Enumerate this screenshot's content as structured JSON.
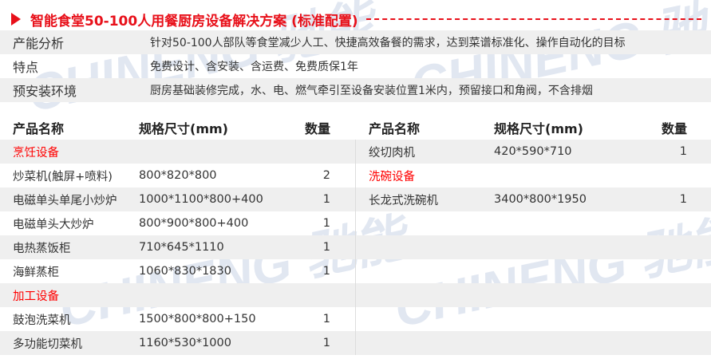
{
  "title": "智能食堂50-100人用餐厨房设备解决方案 (标准配置)",
  "info": [
    {
      "label": "产能分析",
      "value": "针对50-100人部队等食堂减少人工、快捷高效备餐的需求，达到菜谱标准化、操作自动化的目标"
    },
    {
      "label": "特点",
      "value": "免费设计、含安装、含运费、免费质保1年"
    },
    {
      "label": "预安装环境",
      "value": "厨房基础装修完成，水、电、燃气牵引至设备安装位置1米内，预留接口和角阀，不含排烟"
    }
  ],
  "headers": {
    "name": "产品名称",
    "size": "规格尺寸(mm)",
    "qty": "数量"
  },
  "left_rows": [
    {
      "category": "烹饪设备"
    },
    {
      "name": "炒菜机(触屏+喷料)",
      "size": "800*820*800",
      "qty": "2"
    },
    {
      "name": "电磁单头单尾小炒炉",
      "size": "1000*1100*800+400",
      "qty": "1"
    },
    {
      "name": "电磁单头大炒炉",
      "size": "800*900*800+400",
      "qty": "1"
    },
    {
      "name": "电热蒸饭柜",
      "size": "710*645*1110",
      "qty": "1"
    },
    {
      "name": "海鲜蒸柜",
      "size": "1060*830*1830",
      "qty": "1"
    },
    {
      "category": "加工设备"
    },
    {
      "name": "鼓泡洗菜机",
      "size": "1500*800*800+150",
      "qty": "1"
    },
    {
      "name": "多功能切菜机",
      "size": "1160*530*1000",
      "qty": "1"
    }
  ],
  "right_rows": [
    {
      "name": "绞切肉机",
      "size": "420*590*710",
      "qty": "1"
    },
    {
      "category": "洗碗设备"
    },
    {
      "name": "长龙式洗碗机",
      "size": "3400*800*1950",
      "qty": "1"
    },
    {},
    {},
    {},
    {},
    {},
    {}
  ],
  "watermark": "CHINENG 驰能",
  "colors": {
    "accent": "#e8101a",
    "stripe": "#efefef",
    "watermark": "#c9d3e6"
  }
}
